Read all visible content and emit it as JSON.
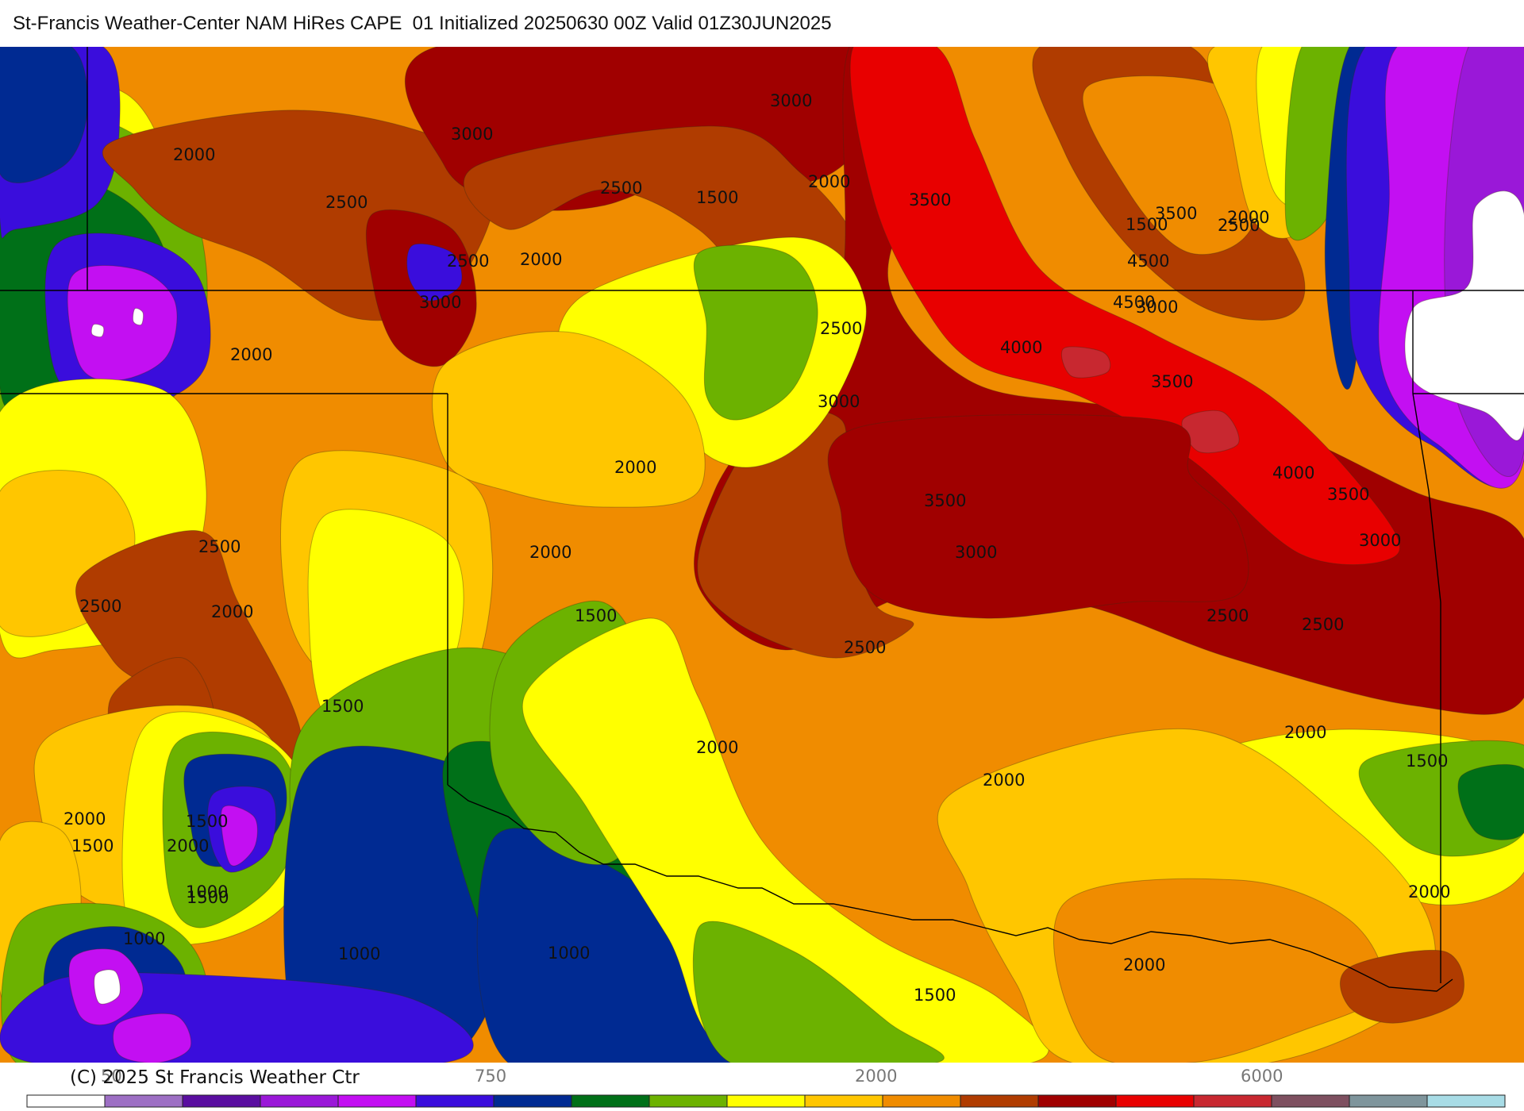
{
  "header": {
    "title": "St-Francis Weather-Center NAM HiRes CAPE  01 Initialized 20250630 00Z Valid 01Z30JUN2025"
  },
  "palette": {
    "white": "#ffffff",
    "lavender": "#9d6fc4",
    "indigo": "#5a0ea0",
    "purple": "#9a18d8",
    "magenta": "#c30ff2",
    "blue": "#3a0ddc",
    "navy": "#002a92",
    "dkgreen": "#007018",
    "green": "#6cb200",
    "yellow": "#ffff00",
    "gold": "#ffc600",
    "orange": "#f08c00",
    "rust": "#b03c00",
    "maroon": "#a00000",
    "red": "#e80000",
    "rosered": "#c82830",
    "mauve": "#7e5060",
    "slate": "#7f959c",
    "lightcyan": "#a8dce6"
  },
  "contour_labels": [
    {
      "text": "3000"
    },
    {
      "text": "3000"
    },
    {
      "text": "2500"
    },
    {
      "text": "2000"
    },
    {
      "text": "2000"
    },
    {
      "text": "2500"
    },
    {
      "text": "1500"
    },
    {
      "text": "2000"
    },
    {
      "text": "3500"
    },
    {
      "text": "3000"
    },
    {
      "text": "2500"
    },
    {
      "text": "3500"
    },
    {
      "text": "4500"
    },
    {
      "text": "1500"
    },
    {
      "text": "2500"
    },
    {
      "text": "2000"
    },
    {
      "text": "3000"
    },
    {
      "text": "4500"
    },
    {
      "text": "2500"
    },
    {
      "text": "2000"
    },
    {
      "text": "4000"
    },
    {
      "text": "3500"
    },
    {
      "text": "3000"
    },
    {
      "text": "2000"
    },
    {
      "text": "4000"
    },
    {
      "text": "3500"
    },
    {
      "text": "3500"
    },
    {
      "text": "2500"
    },
    {
      "text": "3000"
    },
    {
      "text": "3000"
    },
    {
      "text": "2000"
    },
    {
      "text": "2500"
    },
    {
      "text": "1500"
    },
    {
      "text": "2000"
    },
    {
      "text": "2500"
    },
    {
      "text": "2500"
    },
    {
      "text": "2500"
    },
    {
      "text": "1500"
    },
    {
      "text": "2000"
    },
    {
      "text": "2000"
    },
    {
      "text": "1500"
    },
    {
      "text": "2000"
    },
    {
      "text": "2000"
    },
    {
      "text": "1500"
    },
    {
      "text": "1500"
    },
    {
      "text": "2000"
    },
    {
      "text": "1500"
    },
    {
      "text": "2000"
    },
    {
      "text": "1000"
    },
    {
      "text": "1000"
    },
    {
      "text": "1000"
    },
    {
      "text": "1000"
    },
    {
      "text": "1500"
    },
    {
      "text": "2000"
    }
  ],
  "legend": {
    "copyright": "(C) 2025 St Francis Weather Ctr",
    "ticks": [
      {
        "text": "50",
        "color": "#999999"
      },
      {
        "text": "750",
        "color": "#777777"
      },
      {
        "text": "2000",
        "color": "#777777"
      },
      {
        "text": "6000",
        "color": "#777777"
      }
    ],
    "colors": [
      "#ffffff",
      "#9d6fc4",
      "#5a0ea0",
      "#9a18d8",
      "#c30ff2",
      "#3a0ddc",
      "#002a92",
      "#007018",
      "#6cb200",
      "#ffff00",
      "#ffc600",
      "#f08c00",
      "#b03c00",
      "#a00000",
      "#e80000",
      "#c82830",
      "#7e5060",
      "#7f959c",
      "#a8dce6"
    ]
  }
}
